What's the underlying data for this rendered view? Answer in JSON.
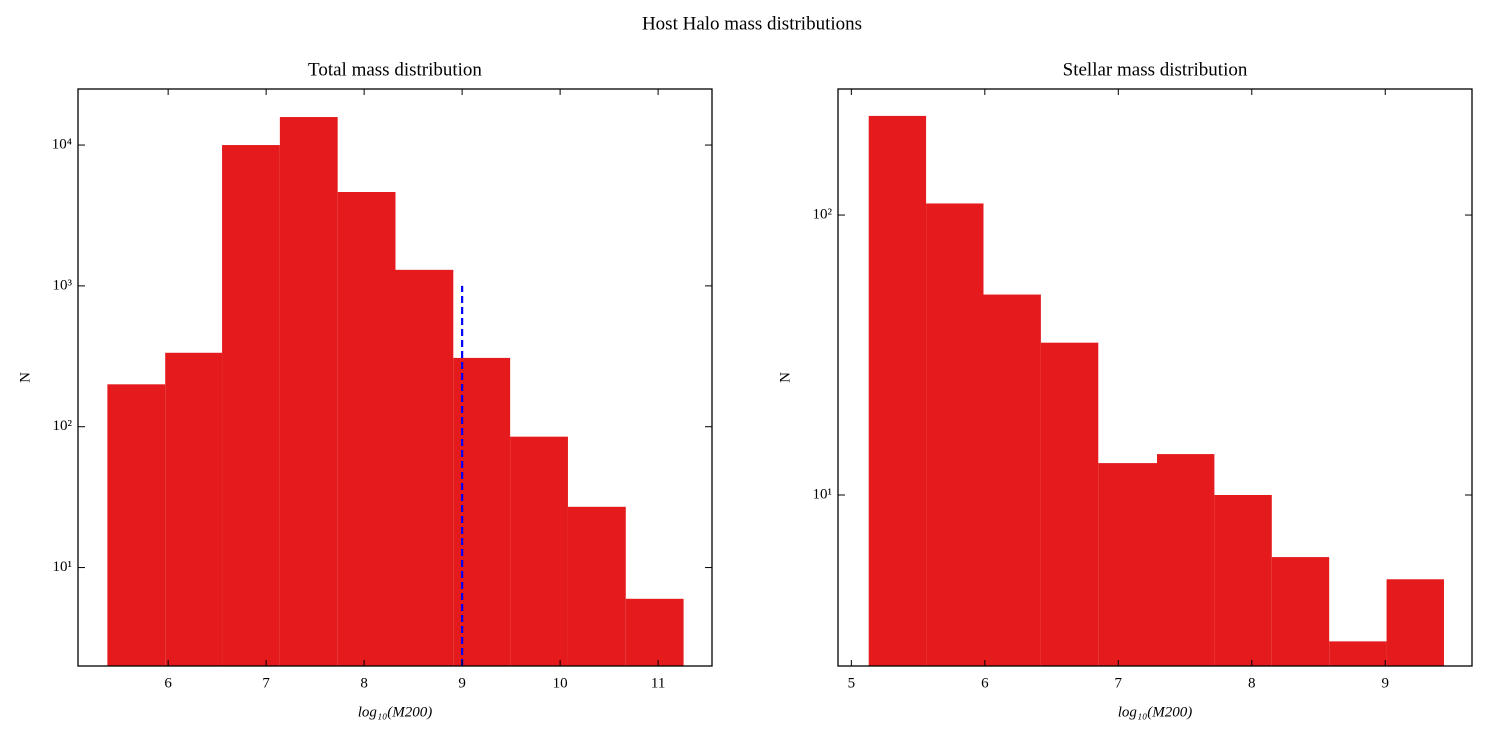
{
  "title": "Host Halo mass distributions",
  "chart_data": [
    {
      "type": "histogram",
      "title": "Total mass distribution",
      "xlabel": "log₁₀(M200)",
      "ylabel": "N",
      "bins": [
        5.38,
        5.97,
        6.55,
        7.14,
        7.73,
        8.32,
        8.91,
        9.49,
        10.08,
        10.67,
        11.26
      ],
      "values": [
        200,
        335,
        10000,
        15800,
        4640,
        1300,
        308,
        85,
        27,
        6
      ],
      "color": "#e41a1c",
      "yscale": "log",
      "xlim": [
        5.08,
        11.55
      ],
      "xticks": [
        6,
        7,
        8,
        9,
        10,
        11
      ],
      "ylim": [
        2,
        25000
      ],
      "yticks": [
        {
          "value": 10,
          "label": "10¹"
        },
        {
          "value": 100,
          "label": "10²"
        },
        {
          "value": 1000,
          "label": "10³"
        },
        {
          "value": 10000,
          "label": "10⁴"
        }
      ],
      "vline": {
        "x": 9,
        "ymax": 1000,
        "color": "#0000ff",
        "style": "dashed"
      }
    },
    {
      "type": "histogram",
      "title": "Stellar mass distribution",
      "xlabel": "log₁₀(M200)",
      "ylabel": "N",
      "bins": [
        5.13,
        5.56,
        5.99,
        6.42,
        6.85,
        7.29,
        7.72,
        8.15,
        8.58,
        9.01,
        9.44
      ],
      "values": [
        226,
        110,
        52,
        35,
        13,
        14,
        10,
        6,
        3,
        5
      ],
      "color": "#e41a1c",
      "yscale": "log",
      "xlim": [
        4.9,
        9.65
      ],
      "xticks": [
        5,
        6,
        7,
        8,
        9
      ],
      "ylim": [
        2.45,
        282
      ],
      "yticks": [
        {
          "value": 10,
          "label": "10¹"
        },
        {
          "value": 100,
          "label": "10²"
        }
      ]
    }
  ]
}
